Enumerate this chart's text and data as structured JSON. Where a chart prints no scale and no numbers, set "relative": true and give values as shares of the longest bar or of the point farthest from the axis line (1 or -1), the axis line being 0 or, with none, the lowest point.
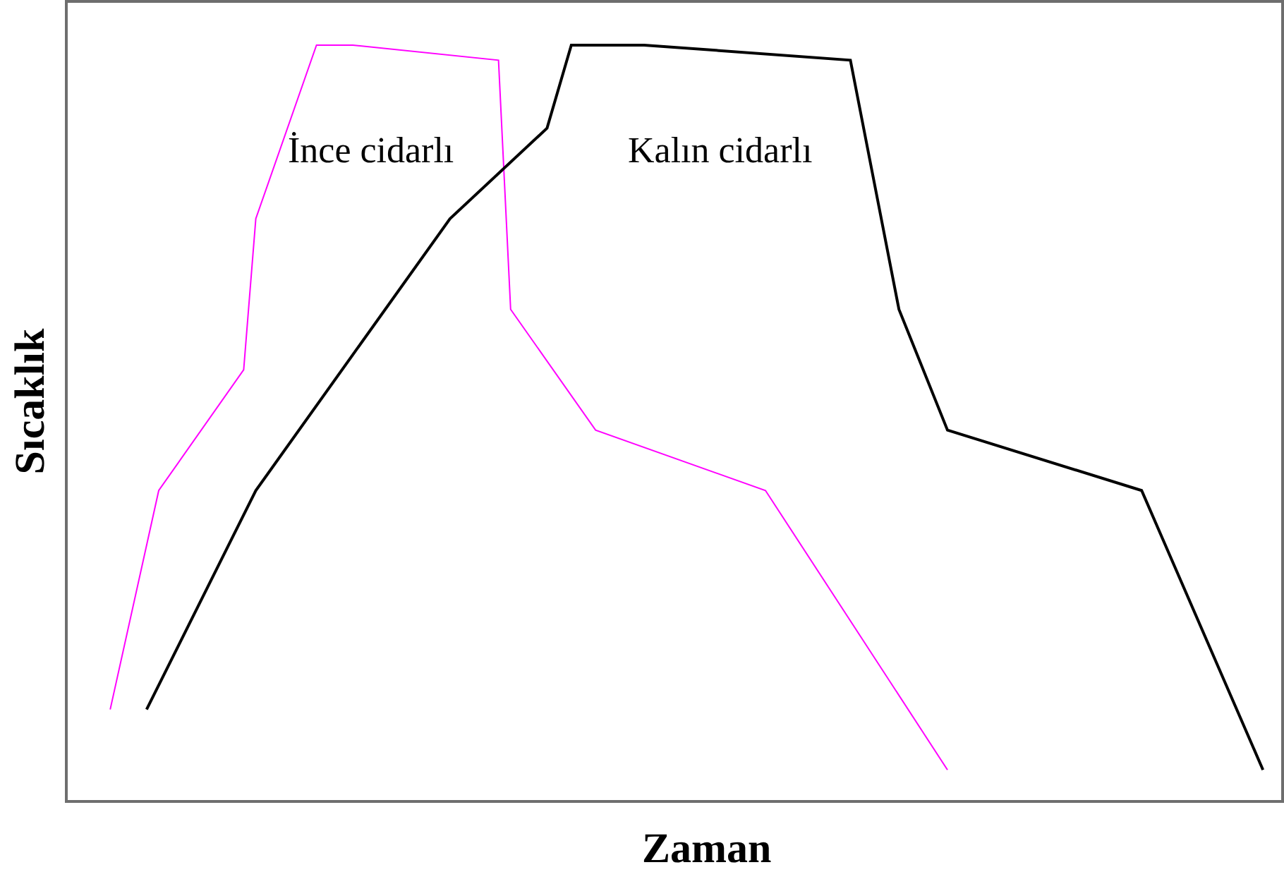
{
  "chart_data": {
    "type": "line",
    "relative": true,
    "xlabel": "Zaman",
    "ylabel": "Sıcaklık",
    "categories": [
      null,
      null,
      null,
      null,
      null,
      null,
      null,
      null,
      null,
      null,
      null,
      null,
      null,
      null,
      null,
      null,
      null,
      null,
      null,
      null,
      null,
      null,
      null,
      null,
      null,
      null,
      null,
      null,
      null,
      null,
      null,
      null,
      null,
      null,
      null,
      null,
      null,
      null,
      null,
      null,
      null,
      null,
      null,
      null,
      null,
      null,
      null,
      null,
      null,
      null,
      null,
      null,
      null,
      null,
      null,
      null,
      null,
      null,
      null,
      null,
      null,
      null,
      null,
      null,
      null,
      null,
      null,
      null,
      null,
      null,
      null,
      null,
      null,
      null,
      null,
      null,
      null,
      null,
      null,
      null,
      null,
      null,
      null,
      null,
      null,
      null,
      null,
      null,
      null,
      null,
      null,
      null,
      null,
      null,
      null,
      null,
      null,
      null,
      null,
      null
    ],
    "series": [
      {
        "name": "İnce cidarlı",
        "color": "#ff00ff",
        "values": [
          null,
          null,
          null,
          0.12,
          null,
          null,
          null,
          0.41,
          null,
          null,
          null,
          null,
          null,
          null,
          0.57,
          0.77,
          null,
          null,
          null,
          null,
          1,
          null,
          null,
          1,
          null,
          null,
          null,
          null,
          null,
          null,
          null,
          null,
          null,
          null,
          null,
          0.98,
          0.65,
          null,
          null,
          null,
          null,
          null,
          null,
          0.49,
          null,
          null,
          null,
          null,
          null,
          null,
          null,
          null,
          null,
          null,
          null,
          null,
          null,
          0.41,
          null,
          null,
          null,
          null,
          null,
          null,
          null,
          null,
          null,
          null,
          null,
          null,
          null,
          null,
          0.04,
          null,
          null,
          null,
          null,
          null,
          null,
          null,
          null,
          null,
          null,
          null,
          null,
          null,
          null,
          null,
          null,
          null,
          null,
          null,
          null,
          null,
          null,
          null,
          null,
          null,
          null,
          null
        ]
      },
      {
        "name": "Kalın cidarlı",
        "color": "#000000",
        "values": [
          null,
          null,
          null,
          null,
          null,
          null,
          0.12,
          null,
          null,
          null,
          null,
          null,
          null,
          null,
          null,
          0.41,
          null,
          null,
          null,
          null,
          null,
          null,
          null,
          null,
          null,
          null,
          null,
          null,
          null,
          null,
          null,
          0.77,
          null,
          null,
          null,
          null,
          null,
          null,
          null,
          0.89,
          null,
          1,
          null,
          null,
          null,
          null,
          null,
          1,
          null,
          null,
          null,
          null,
          null,
          null,
          null,
          null,
          null,
          null,
          null,
          null,
          null,
          null,
          null,
          null,
          0.98,
          null,
          null,
          null,
          0.65,
          null,
          null,
          null,
          0.49,
          null,
          null,
          null,
          null,
          null,
          null,
          null,
          null,
          null,
          null,
          null,
          null,
          null,
          null,
          null,
          0.41,
          null,
          null,
          null,
          null,
          null,
          null,
          null,
          null,
          null,
          0.04,
          null
        ]
      }
    ]
  }
}
